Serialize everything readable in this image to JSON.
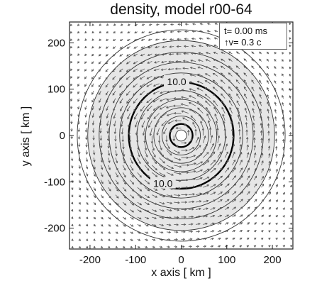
{
  "chart_data": {
    "type": "contour",
    "title": "density, model r00-64",
    "xlabel": "x axis [ km ]",
    "ylabel": "y axis [ km ]",
    "xlim": [
      -245,
      245
    ],
    "ylim": [
      -245,
      245
    ],
    "xticks": [
      -200,
      -100,
      0,
      100,
      200
    ],
    "yticks": [
      -200,
      -100,
      0,
      100,
      200
    ],
    "legend": {
      "position": "top-right",
      "time_text": "t=  0.00 ms",
      "velocity_text": "↑v=  0.3  c"
    },
    "contour_radii_km": [
      12,
      25,
      42,
      60,
      78,
      97,
      115,
      135,
      158,
      180,
      205,
      228
    ],
    "highlighted_contour_radii_km": [
      25,
      115
    ],
    "contour_labels": [
      {
        "text": "10.0",
        "x": -10,
        "y": 115
      },
      {
        "text": "10.0",
        "x": -40,
        "y": -105
      }
    ],
    "shaded_region_max_radius_km": 205,
    "velocity_field": {
      "description_units": "arrow length relative to 0.3 c reference",
      "rotation": "counter-clockwise",
      "arrow_grid_spacing_km": 16
    }
  },
  "colors": {
    "shading": "#e6e6e6",
    "contour": "#333333",
    "highlight_contour": "#000000",
    "arrow": "#555555"
  }
}
